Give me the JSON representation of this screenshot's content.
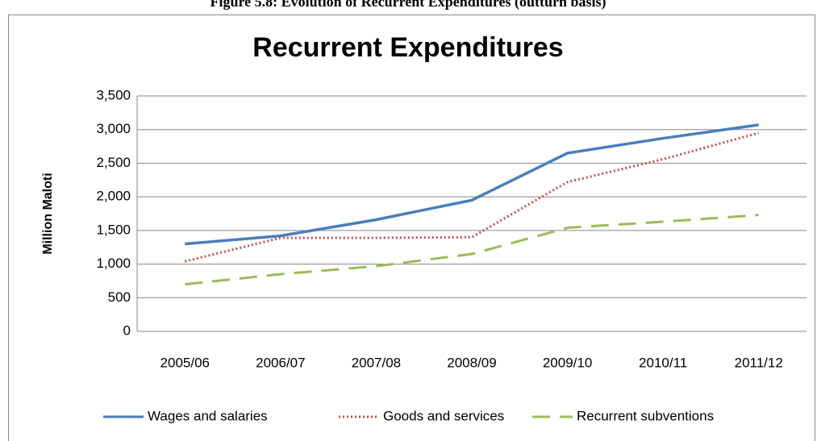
{
  "caption": "Figure 5.8: Evolution of Recurrent Expenditures (outturn basis)",
  "chart_data": {
    "type": "line",
    "title": "Recurrent Expenditures",
    "y_label": "Million Maloti",
    "categories": [
      "2005/06",
      "2006/07",
      "2007/08",
      "2008/09",
      "2009/10",
      "2010/11",
      "2011/12"
    ],
    "series": [
      {
        "name": "Wages and salaries",
        "color": "#4a7ebb",
        "style": "solid",
        "values": [
          1300,
          1420,
          1660,
          1950,
          2650,
          2870,
          3070
        ]
      },
      {
        "name": "Goods and services",
        "color": "#c0504d",
        "style": "dotted",
        "values": [
          1040,
          1390,
          1390,
          1400,
          2220,
          2560,
          2950
        ]
      },
      {
        "name": "Recurrent subventions",
        "color": "#9bbb59",
        "style": "dashed",
        "values": [
          700,
          850,
          970,
          1150,
          1540,
          1630,
          1730
        ]
      }
    ],
    "ylim": [
      0,
      3500
    ],
    "yticks": [
      0,
      500,
      {
        "value": 1000,
        "label": "1,000"
      },
      {
        "value": 1500,
        "label": "1,500"
      },
      {
        "value": 2000,
        "label": "2,000"
      },
      {
        "value": 2500,
        "label": "2,500"
      },
      {
        "value": 3000,
        "label": "3,000"
      },
      {
        "value": 3500,
        "label": "3,500"
      }
    ],
    "grid": true,
    "legend": "bottom"
  }
}
